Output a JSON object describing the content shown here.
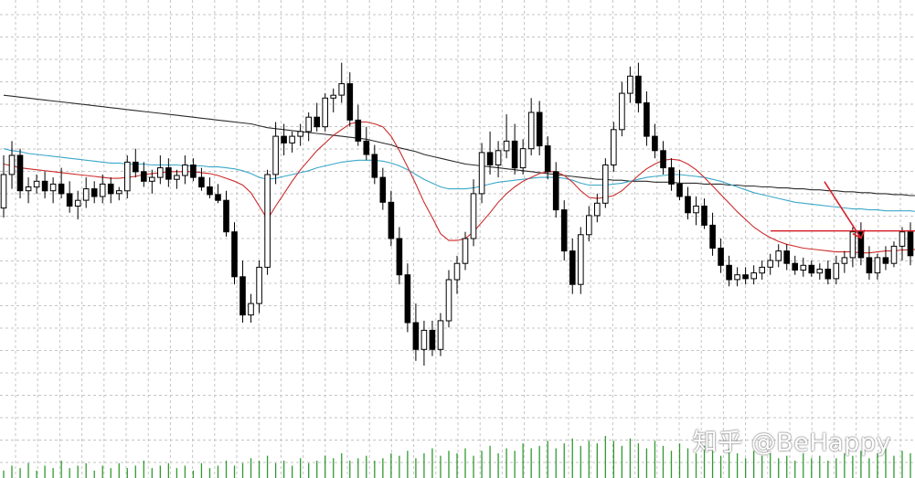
{
  "chart_data": {
    "type": "candlestick",
    "title": "",
    "xlabel": "",
    "ylabel": "",
    "grid": true,
    "colors": {
      "background": "#ffffff",
      "grid": "#c4c4c4",
      "candle": "#000000",
      "ma_fast": "#cc2a2a",
      "ma_mid": "#3aa7c9",
      "ma_slow": "#2b2b2b",
      "volume": "#2f9a2f",
      "annotation": "#d6222a"
    },
    "price_range": [
      0,
      440
    ],
    "candles": [
      {
        "o": 230,
        "h": 285,
        "l": 220,
        "c": 265
      },
      {
        "o": 265,
        "h": 300,
        "l": 250,
        "c": 285
      },
      {
        "o": 285,
        "h": 292,
        "l": 240,
        "c": 248
      },
      {
        "o": 248,
        "h": 262,
        "l": 235,
        "c": 252
      },
      {
        "o": 252,
        "h": 265,
        "l": 245,
        "c": 258
      },
      {
        "o": 258,
        "h": 268,
        "l": 240,
        "c": 248
      },
      {
        "o": 248,
        "h": 262,
        "l": 235,
        "c": 255
      },
      {
        "o": 255,
        "h": 272,
        "l": 240,
        "c": 245
      },
      {
        "o": 245,
        "h": 258,
        "l": 225,
        "c": 232
      },
      {
        "o": 232,
        "h": 248,
        "l": 218,
        "c": 238
      },
      {
        "o": 238,
        "h": 262,
        "l": 230,
        "c": 250
      },
      {
        "o": 250,
        "h": 258,
        "l": 235,
        "c": 242
      },
      {
        "o": 242,
        "h": 265,
        "l": 235,
        "c": 255
      },
      {
        "o": 255,
        "h": 262,
        "l": 235,
        "c": 245
      },
      {
        "o": 245,
        "h": 252,
        "l": 238,
        "c": 248
      },
      {
        "o": 248,
        "h": 285,
        "l": 240,
        "c": 278
      },
      {
        "o": 278,
        "h": 292,
        "l": 262,
        "c": 268
      },
      {
        "o": 268,
        "h": 278,
        "l": 252,
        "c": 258
      },
      {
        "o": 258,
        "h": 270,
        "l": 245,
        "c": 262
      },
      {
        "o": 262,
        "h": 285,
        "l": 255,
        "c": 272
      },
      {
        "o": 272,
        "h": 282,
        "l": 252,
        "c": 260
      },
      {
        "o": 260,
        "h": 270,
        "l": 250,
        "c": 264
      },
      {
        "o": 264,
        "h": 285,
        "l": 255,
        "c": 275
      },
      {
        "o": 275,
        "h": 282,
        "l": 258,
        "c": 262
      },
      {
        "o": 262,
        "h": 272,
        "l": 248,
        "c": 252
      },
      {
        "o": 252,
        "h": 262,
        "l": 240,
        "c": 244
      },
      {
        "o": 244,
        "h": 255,
        "l": 235,
        "c": 238
      },
      {
        "o": 238,
        "h": 248,
        "l": 200,
        "c": 205
      },
      {
        "o": 205,
        "h": 215,
        "l": 150,
        "c": 158
      },
      {
        "o": 158,
        "h": 175,
        "l": 110,
        "c": 118
      },
      {
        "o": 118,
        "h": 140,
        "l": 110,
        "c": 130
      },
      {
        "o": 130,
        "h": 175,
        "l": 120,
        "c": 168
      },
      {
        "o": 168,
        "h": 270,
        "l": 160,
        "c": 265
      },
      {
        "o": 265,
        "h": 320,
        "l": 255,
        "c": 305
      },
      {
        "o": 305,
        "h": 318,
        "l": 285,
        "c": 298
      },
      {
        "o": 298,
        "h": 310,
        "l": 288,
        "c": 305
      },
      {
        "o": 305,
        "h": 318,
        "l": 295,
        "c": 310
      },
      {
        "o": 310,
        "h": 330,
        "l": 300,
        "c": 325
      },
      {
        "o": 325,
        "h": 340,
        "l": 310,
        "c": 315
      },
      {
        "o": 315,
        "h": 350,
        "l": 310,
        "c": 345
      },
      {
        "o": 345,
        "h": 355,
        "l": 330,
        "c": 348
      },
      {
        "o": 348,
        "h": 382,
        "l": 340,
        "c": 360
      },
      {
        "o": 360,
        "h": 372,
        "l": 315,
        "c": 322
      },
      {
        "o": 322,
        "h": 338,
        "l": 295,
        "c": 300
      },
      {
        "o": 300,
        "h": 315,
        "l": 280,
        "c": 286
      },
      {
        "o": 286,
        "h": 296,
        "l": 255,
        "c": 262
      },
      {
        "o": 262,
        "h": 272,
        "l": 228,
        "c": 236
      },
      {
        "o": 236,
        "h": 248,
        "l": 190,
        "c": 198
      },
      {
        "o": 198,
        "h": 210,
        "l": 150,
        "c": 160
      },
      {
        "o": 160,
        "h": 172,
        "l": 100,
        "c": 110
      },
      {
        "o": 110,
        "h": 130,
        "l": 70,
        "c": 82
      },
      {
        "o": 82,
        "h": 112,
        "l": 65,
        "c": 102
      },
      {
        "o": 102,
        "h": 112,
        "l": 75,
        "c": 82
      },
      {
        "o": 82,
        "h": 120,
        "l": 75,
        "c": 112
      },
      {
        "o": 112,
        "h": 165,
        "l": 105,
        "c": 155
      },
      {
        "o": 155,
        "h": 180,
        "l": 140,
        "c": 172
      },
      {
        "o": 172,
        "h": 205,
        "l": 165,
        "c": 198
      },
      {
        "o": 198,
        "h": 260,
        "l": 190,
        "c": 245
      },
      {
        "o": 245,
        "h": 298,
        "l": 235,
        "c": 288
      },
      {
        "o": 288,
        "h": 310,
        "l": 265,
        "c": 275
      },
      {
        "o": 275,
        "h": 300,
        "l": 262,
        "c": 290
      },
      {
        "o": 290,
        "h": 328,
        "l": 282,
        "c": 300
      },
      {
        "o": 300,
        "h": 318,
        "l": 265,
        "c": 272
      },
      {
        "o": 272,
        "h": 302,
        "l": 265,
        "c": 292
      },
      {
        "o": 292,
        "h": 345,
        "l": 285,
        "c": 330
      },
      {
        "o": 330,
        "h": 342,
        "l": 285,
        "c": 295
      },
      {
        "o": 295,
        "h": 305,
        "l": 260,
        "c": 268
      },
      {
        "o": 268,
        "h": 278,
        "l": 220,
        "c": 228
      },
      {
        "o": 228,
        "h": 238,
        "l": 175,
        "c": 185
      },
      {
        "o": 185,
        "h": 198,
        "l": 140,
        "c": 150
      },
      {
        "o": 150,
        "h": 210,
        "l": 140,
        "c": 202
      },
      {
        "o": 202,
        "h": 232,
        "l": 195,
        "c": 222
      },
      {
        "o": 222,
        "h": 245,
        "l": 215,
        "c": 235
      },
      {
        "o": 235,
        "h": 282,
        "l": 230,
        "c": 275
      },
      {
        "o": 275,
        "h": 320,
        "l": 268,
        "c": 312
      },
      {
        "o": 312,
        "h": 362,
        "l": 305,
        "c": 350
      },
      {
        "o": 350,
        "h": 378,
        "l": 340,
        "c": 368
      },
      {
        "o": 368,
        "h": 382,
        "l": 330,
        "c": 340
      },
      {
        "o": 340,
        "h": 352,
        "l": 295,
        "c": 305
      },
      {
        "o": 305,
        "h": 318,
        "l": 282,
        "c": 290
      },
      {
        "o": 290,
        "h": 300,
        "l": 265,
        "c": 272
      },
      {
        "o": 272,
        "h": 282,
        "l": 248,
        "c": 255
      },
      {
        "o": 255,
        "h": 270,
        "l": 238,
        "c": 242
      },
      {
        "o": 242,
        "h": 252,
        "l": 218,
        "c": 225
      },
      {
        "o": 225,
        "h": 242,
        "l": 212,
        "c": 232
      },
      {
        "o": 232,
        "h": 240,
        "l": 208,
        "c": 212
      },
      {
        "o": 212,
        "h": 225,
        "l": 180,
        "c": 188
      },
      {
        "o": 188,
        "h": 198,
        "l": 162,
        "c": 170
      },
      {
        "o": 170,
        "h": 180,
        "l": 148,
        "c": 155
      },
      {
        "o": 155,
        "h": 168,
        "l": 148,
        "c": 160
      },
      {
        "o": 160,
        "h": 168,
        "l": 150,
        "c": 156
      },
      {
        "o": 156,
        "h": 170,
        "l": 150,
        "c": 162
      },
      {
        "o": 162,
        "h": 175,
        "l": 155,
        "c": 168
      },
      {
        "o": 168,
        "h": 182,
        "l": 160,
        "c": 175
      },
      {
        "o": 175,
        "h": 192,
        "l": 168,
        "c": 185
      },
      {
        "o": 185,
        "h": 192,
        "l": 165,
        "c": 172
      },
      {
        "o": 172,
        "h": 180,
        "l": 160,
        "c": 165
      },
      {
        "o": 165,
        "h": 178,
        "l": 158,
        "c": 170
      },
      {
        "o": 170,
        "h": 175,
        "l": 158,
        "c": 162
      },
      {
        "o": 162,
        "h": 172,
        "l": 155,
        "c": 166
      },
      {
        "o": 166,
        "h": 175,
        "l": 150,
        "c": 156
      },
      {
        "o": 156,
        "h": 180,
        "l": 150,
        "c": 172
      },
      {
        "o": 172,
        "h": 185,
        "l": 162,
        "c": 178
      },
      {
        "o": 178,
        "h": 210,
        "l": 168,
        "c": 205
      },
      {
        "o": 205,
        "h": 215,
        "l": 170,
        "c": 178
      },
      {
        "o": 178,
        "h": 190,
        "l": 155,
        "c": 162
      },
      {
        "o": 162,
        "h": 182,
        "l": 155,
        "c": 178
      },
      {
        "o": 178,
        "h": 190,
        "l": 165,
        "c": 172
      },
      {
        "o": 172,
        "h": 195,
        "l": 168,
        "c": 190
      },
      {
        "o": 190,
        "h": 210,
        "l": 175,
        "c": 205
      },
      {
        "o": 205,
        "h": 215,
        "l": 170,
        "c": 180
      }
    ],
    "ma_fast": [
      276,
      274,
      272,
      271,
      270,
      269,
      268,
      267,
      266,
      265,
      264,
      263,
      262,
      261,
      261,
      262,
      263,
      265,
      266,
      267,
      268,
      268,
      268,
      268,
      267,
      266,
      264,
      261,
      258,
      254,
      246,
      232,
      218,
      232,
      245,
      258,
      270,
      280,
      290,
      298,
      306,
      312,
      318,
      320,
      320,
      318,
      315,
      305,
      290,
      273,
      255,
      236,
      220,
      203,
      196,
      196,
      198,
      205,
      215,
      225,
      236,
      245,
      252,
      258,
      262,
      266,
      268,
      268,
      264,
      257,
      248,
      241,
      240,
      241,
      243,
      248,
      256,
      264,
      271,
      276,
      280,
      281,
      280,
      276,
      270,
      262,
      253,
      244,
      235,
      226,
      218,
      210,
      204,
      199,
      195,
      192,
      190,
      188,
      187,
      186,
      185,
      184,
      184,
      184,
      183,
      183,
      184,
      185,
      185,
      186,
      186,
      187,
      187
    ],
    "ma_mid": [
      292,
      290,
      289,
      287,
      286,
      285,
      284,
      283,
      282,
      281,
      280,
      279,
      278,
      277,
      277,
      276,
      276,
      276,
      275,
      275,
      275,
      275,
      274,
      274,
      274,
      273,
      273,
      272,
      271,
      269,
      266,
      262,
      260,
      261,
      263,
      265,
      267,
      269,
      272,
      274,
      276,
      278,
      279,
      280,
      280,
      280,
      279,
      277,
      274,
      270,
      265,
      260,
      256,
      252,
      250,
      250,
      250,
      251,
      253,
      255,
      257,
      258,
      259,
      260,
      261,
      262,
      262,
      262,
      261,
      259,
      256,
      254,
      254,
      254,
      255,
      256,
      258,
      260,
      262,
      263,
      264,
      265,
      265,
      264,
      263,
      262,
      260,
      258,
      255,
      252,
      249,
      246,
      244,
      242,
      240,
      238,
      236,
      235,
      234,
      233,
      232,
      231,
      230,
      229,
      229,
      228,
      228,
      227,
      227,
      227,
      227,
      226,
      226
    ],
    "ma_slow": [
      348,
      347,
      346,
      345,
      344,
      343,
      342,
      341,
      340,
      339,
      338,
      337,
      336,
      335,
      334,
      333,
      332,
      331,
      330,
      329,
      328,
      327,
      326,
      325,
      324,
      323,
      322,
      321,
      320,
      319,
      318,
      316,
      314,
      313,
      312,
      311,
      310,
      309,
      308,
      307,
      306,
      305,
      304,
      303,
      302,
      300,
      298,
      296,
      293,
      291,
      289,
      286,
      284,
      282,
      280,
      278,
      276,
      275,
      274,
      273,
      272,
      271,
      270,
      269,
      268,
      267,
      266,
      265,
      264,
      263,
      262,
      261,
      260,
      260,
      259,
      259,
      258,
      258,
      258,
      257,
      257,
      257,
      256,
      256,
      256,
      255,
      255,
      255,
      254,
      254,
      253,
      253,
      252,
      252,
      251,
      251,
      250,
      250,
      249,
      249,
      248,
      248,
      247,
      247,
      246,
      246,
      245,
      245,
      244,
      244,
      243,
      243,
      243
    ],
    "volume": [
      3,
      5,
      4,
      6,
      3,
      5,
      4,
      7,
      4,
      5,
      6,
      3,
      5,
      4,
      6,
      4,
      5,
      7,
      4,
      5,
      6,
      4,
      5,
      3,
      6,
      4,
      5,
      7,
      5,
      6,
      8,
      7,
      9,
      6,
      7,
      5,
      8,
      6,
      7,
      9,
      8,
      10,
      7,
      8,
      9,
      7,
      8,
      10,
      9,
      11,
      8,
      10,
      12,
      9,
      11,
      10,
      12,
      9,
      11,
      13,
      10,
      12,
      11,
      14,
      12,
      13,
      15,
      12,
      14,
      16,
      13,
      15,
      14,
      17,
      15,
      13,
      16,
      14,
      12,
      15,
      13,
      11,
      14,
      12,
      10,
      13,
      11,
      9,
      12,
      10,
      8,
      11,
      9,
      10,
      8,
      9,
      7,
      10,
      8,
      9,
      7,
      8,
      10,
      9,
      11,
      8,
      10,
      12,
      9,
      11,
      10,
      9,
      8
    ]
  },
  "annotations": {
    "horizontal_line_price": 206,
    "arrow_target_index": 104
  },
  "watermark": {
    "text": "知乎 @BeHappy"
  }
}
